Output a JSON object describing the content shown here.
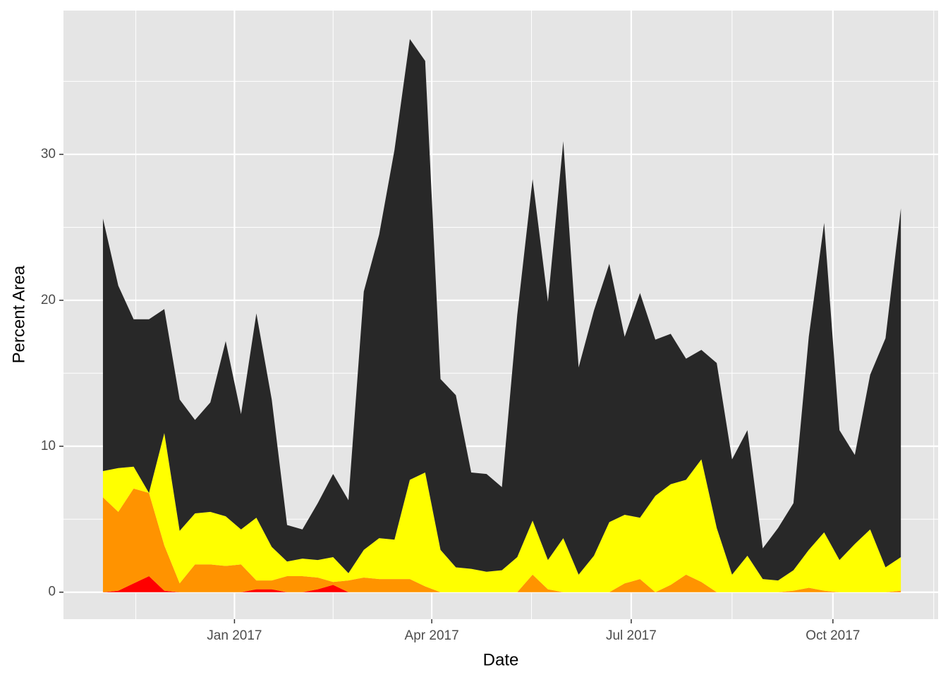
{
  "chart_data": {
    "type": "stacked_area",
    "xlabel": "Date",
    "ylabel": "Percent Area",
    "x": [
      "2016-11-02",
      "2016-11-09",
      "2016-11-16",
      "2016-11-23",
      "2016-11-30",
      "2016-12-07",
      "2016-12-14",
      "2016-12-21",
      "2016-12-28",
      "2017-01-04",
      "2017-01-11",
      "2017-01-18",
      "2017-01-25",
      "2017-02-01",
      "2017-02-08",
      "2017-02-15",
      "2017-02-22",
      "2017-03-01",
      "2017-03-08",
      "2017-03-15",
      "2017-03-22",
      "2017-03-29",
      "2017-04-05",
      "2017-04-12",
      "2017-04-19",
      "2017-04-26",
      "2017-05-03",
      "2017-05-10",
      "2017-05-17",
      "2017-05-24",
      "2017-05-31",
      "2017-06-07",
      "2017-06-14",
      "2017-06-21",
      "2017-06-28",
      "2017-07-05",
      "2017-07-12",
      "2017-07-19",
      "2017-07-26",
      "2017-08-02",
      "2017-08-09",
      "2017-08-16",
      "2017-08-23",
      "2017-08-30",
      "2017-09-06",
      "2017-09-13",
      "2017-09-20",
      "2017-09-27",
      "2017-10-04",
      "2017-10-11",
      "2017-10-18",
      "2017-10-25",
      "2017-11-01"
    ],
    "series": [
      {
        "color": "#ff0000",
        "values": [
          0,
          0.1,
          0.6,
          1.1,
          0.1,
          0,
          0,
          0,
          0,
          0,
          0.2,
          0.2,
          0,
          0,
          0.2,
          0.5,
          0,
          0,
          0,
          0,
          0,
          0,
          0,
          0,
          0,
          0,
          0,
          0,
          0,
          0,
          0,
          0,
          0,
          0,
          0,
          0,
          0,
          0,
          0,
          0,
          0,
          0,
          0,
          0,
          0,
          0,
          0,
          0,
          0,
          0,
          0,
          0,
          0
        ]
      },
      {
        "color": "#ff9300",
        "values": [
          6.5,
          5.4,
          6.5,
          5.7,
          3.1,
          0.6,
          1.9,
          1.9,
          1.8,
          1.9,
          0.6,
          0.6,
          1.1,
          1.1,
          0.8,
          0.2,
          0.8,
          1.0,
          0.9,
          0.9,
          0.9,
          0.4,
          0,
          0,
          0,
          0,
          0,
          0,
          1.2,
          0.2,
          0,
          0,
          0,
          0,
          0.6,
          0.9,
          0,
          0.5,
          1.2,
          0.7,
          0,
          0,
          0,
          0,
          0,
          0.1,
          0.3,
          0.1,
          0,
          0,
          0,
          0,
          0.1
        ]
      },
      {
        "color": "#ffff00",
        "values": [
          1.8,
          3.0,
          1.5,
          0,
          7.7,
          3.6,
          3.5,
          3.6,
          3.4,
          2.4,
          4.3,
          2.3,
          1.0,
          1.2,
          1.2,
          1.7,
          0.5,
          1.9,
          2.8,
          2.7,
          6.8,
          7.8,
          2.9,
          1.7,
          1.6,
          1.4,
          1.5,
          2.4,
          3.7,
          2.0,
          3.7,
          1.2,
          2.5,
          4.8,
          4.7,
          4.2,
          6.6,
          6.9,
          6.5,
          8.4,
          4.4,
          1.2,
          2.5,
          0.9,
          0.8,
          1.4,
          2.6,
          4.0,
          2.2,
          3.3,
          4.3,
          1.7,
          2.3
        ]
      },
      {
        "color": "#282828",
        "values": [
          17.3,
          12.5,
          10.1,
          11.9,
          8.5,
          9.0,
          6.4,
          7.5,
          12.0,
          7.9,
          14.0,
          10.1,
          2.5,
          2.0,
          3.9,
          5.7,
          5.0,
          17.7,
          20.8,
          26.7,
          30.2,
          28.2,
          11.7,
          11.8,
          6.6,
          6.7,
          5.7,
          16.6,
          23.4,
          17.7,
          27.2,
          14.2,
          16.8,
          17.7,
          12.2,
          15.4,
          10.7,
          10.3,
          8.3,
          7.5,
          11.3,
          7.9,
          8.6,
          2.1,
          3.6,
          4.6,
          14.6,
          21.2,
          8.9,
          6.1,
          10.6,
          15.7,
          23.9
        ]
      }
    ],
    "xlim": [
      "2016-10-15",
      "2017-11-18"
    ],
    "xticks": [
      {
        "value": "2017-01-01",
        "label": "Jan 2017"
      },
      {
        "value": "2017-04-01",
        "label": "Apr 2017"
      },
      {
        "value": "2017-07-01",
        "label": "Jul 2017"
      },
      {
        "value": "2017-10-01",
        "label": "Oct 2017"
      }
    ],
    "ylim": [
      -1.85,
      39.85
    ],
    "yticks": [
      0,
      10,
      20,
      30
    ],
    "grid": true
  }
}
